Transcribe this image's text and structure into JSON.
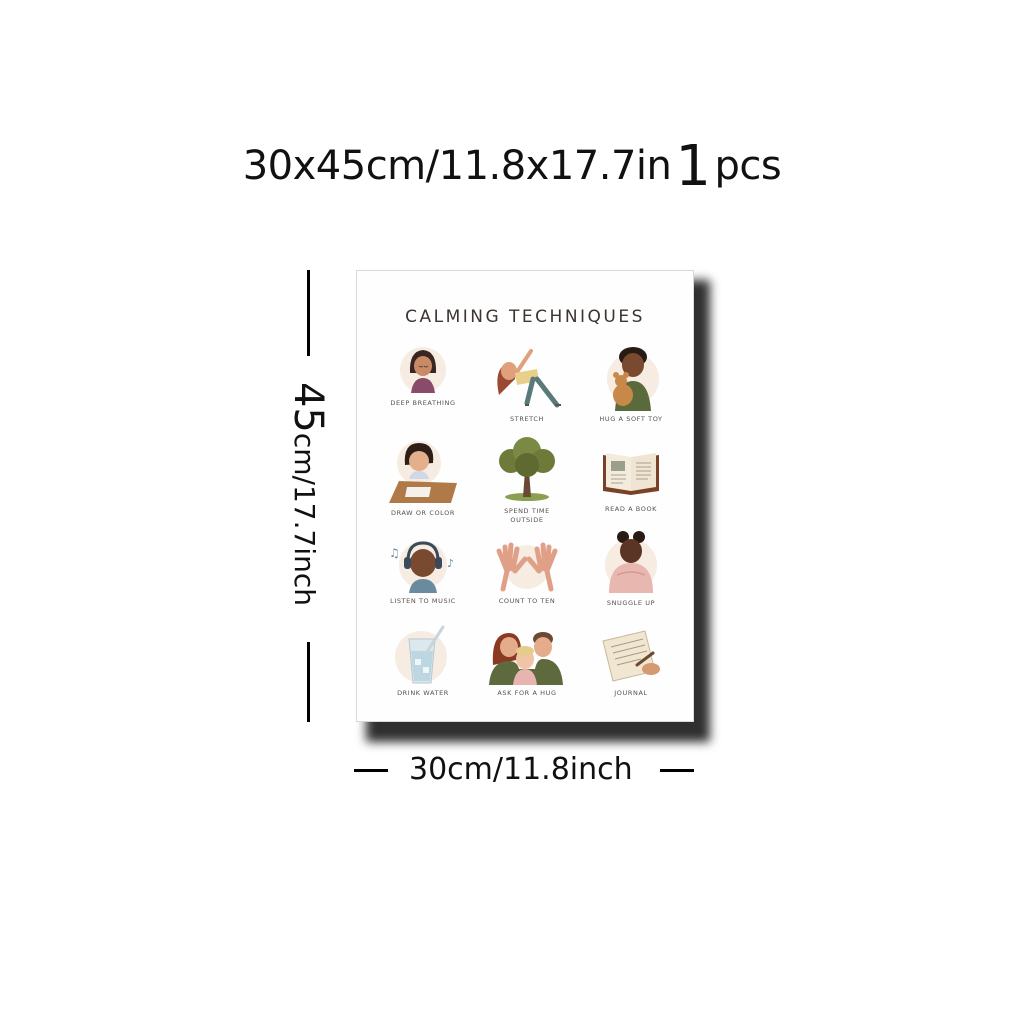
{
  "headline": {
    "size_text": "30x45cm/11.8x17.7in",
    "quantity": "1",
    "unit": "pcs"
  },
  "poster": {
    "title": "CALMING TECHNIQUES",
    "techniques": [
      {
        "label": "DEEP BREATHING",
        "icon": "deep-breathing-icon"
      },
      {
        "label": "STRETCH",
        "icon": "stretch-icon"
      },
      {
        "label": "HUG A SOFT TOY",
        "icon": "hug-soft-toy-icon"
      },
      {
        "label": "DRAW OR COLOR",
        "icon": "draw-icon"
      },
      {
        "label": "SPEND TIME\nOUTSIDE",
        "icon": "tree-icon"
      },
      {
        "label": "READ A BOOK",
        "icon": "book-icon"
      },
      {
        "label": "LISTEN TO MUSIC",
        "icon": "headphones-icon"
      },
      {
        "label": "COUNT TO TEN",
        "icon": "hands-icon"
      },
      {
        "label": "SNUGGLE UP",
        "icon": "blanket-icon"
      },
      {
        "label": "DRINK WATER",
        "icon": "water-glass-icon"
      },
      {
        "label": "ASK FOR A HUG",
        "icon": "family-hug-icon"
      },
      {
        "label": "JOURNAL",
        "icon": "journal-icon"
      }
    ]
  },
  "dimensions": {
    "height_value": "45",
    "height_rest": "cm/17.7inch",
    "width_label": "30cm/11.8inch"
  }
}
